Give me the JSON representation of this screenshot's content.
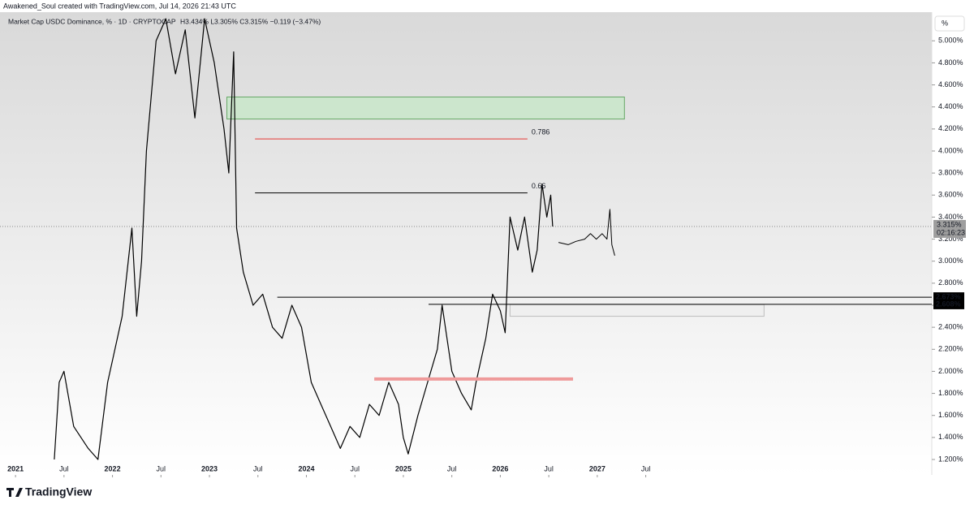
{
  "credit": "Awakened_Soul created with TradingView.com, Jul 14, 2026 21:43 UTC",
  "brand": "TradingView",
  "chart_data": {
    "type": "line",
    "title": "Market Cap USDC Dominance, % · 1D · CRYPTOCAP",
    "subtitle": "H3.434% L3.305% C3.315% −0.119 (−3.47%)",
    "scale_button": "%",
    "xlim": [
      2020.84,
      2030.45
    ],
    "ylim": [
      1.06,
      5.26
    ],
    "xticks": [
      {
        "value": 2021,
        "label": "2021"
      },
      {
        "value": 2021.5,
        "label": "Jul"
      },
      {
        "value": 2022,
        "label": "2022"
      },
      {
        "value": 2022.5,
        "label": "Jul"
      },
      {
        "value": 2023,
        "label": "2023"
      },
      {
        "value": 2023.5,
        "label": "Jul"
      },
      {
        "value": 2024,
        "label": "2024"
      },
      {
        "value": 2024.5,
        "label": "Jul"
      },
      {
        "value": 2025,
        "label": "2025"
      },
      {
        "value": 2025.5,
        "label": "Jul"
      },
      {
        "value": 2026,
        "label": "2026"
      },
      {
        "value": 2026.5,
        "label": "Jul"
      },
      {
        "value": 2027,
        "label": "2027"
      },
      {
        "value": 2027.5,
        "label": "Jul"
      }
    ],
    "yticks": [
      {
        "value": 1.2,
        "label": "1.200%"
      },
      {
        "value": 1.4,
        "label": "1.400%"
      },
      {
        "value": 1.6,
        "label": "1.600%"
      },
      {
        "value": 1.8,
        "label": "1.800%"
      },
      {
        "value": 2.0,
        "label": "2.000%"
      },
      {
        "value": 2.2,
        "label": "2.200%"
      },
      {
        "value": 2.4,
        "label": "2.400%"
      },
      {
        "value": 2.6,
        "label": "2.600%"
      },
      {
        "value": 2.8,
        "label": "2.800%"
      },
      {
        "value": 3.0,
        "label": "3.000%"
      },
      {
        "value": 3.2,
        "label": "3.200%"
      },
      {
        "value": 3.4,
        "label": "3.400%"
      },
      {
        "value": 3.6,
        "label": "3.600%"
      },
      {
        "value": 3.8,
        "label": "3.800%"
      },
      {
        "value": 4.0,
        "label": "4.000%"
      },
      {
        "value": 4.2,
        "label": "4.200%"
      },
      {
        "value": 4.4,
        "label": "4.400%"
      },
      {
        "value": 4.6,
        "label": "4.600%"
      },
      {
        "value": 4.8,
        "label": "4.800%"
      },
      {
        "value": 5.0,
        "label": "5.000%"
      }
    ],
    "series": [
      {
        "color": "#000000",
        "width": 1.2,
        "x": [
          2021.4,
          2021.45,
          2021.5,
          2021.6,
          2021.75,
          2021.85,
          2021.95,
          2022.0,
          2022.1,
          2022.2,
          2022.25,
          2022.3,
          2022.35,
          2022.45,
          2022.55,
          2022.65,
          2022.75,
          2022.85,
          2022.95,
          2023.05,
          2023.15,
          2023.2,
          2023.25,
          2023.28,
          2023.35,
          2023.45,
          2023.55,
          2023.65,
          2023.75,
          2023.85,
          2023.95,
          2024.05,
          2024.15,
          2024.25,
          2024.35,
          2024.45,
          2024.55,
          2024.65,
          2024.75,
          2024.85,
          2024.95,
          2025.0,
          2025.05,
          2025.15,
          2025.25,
          2025.35,
          2025.4,
          2025.5,
          2025.6,
          2025.7,
          2025.75,
          2025.85,
          2025.92,
          2026.0,
          2026.05,
          2026.1,
          2026.18,
          2026.25,
          2026.33,
          2026.38,
          2026.43,
          2026.48,
          2026.52,
          2026.54
        ],
        "values": [
          1.2,
          1.9,
          2.0,
          1.5,
          1.3,
          1.2,
          1.9,
          2.1,
          2.5,
          3.3,
          2.5,
          3.0,
          4.0,
          5.0,
          5.2,
          4.7,
          5.1,
          4.3,
          5.2,
          4.8,
          4.2,
          3.8,
          4.9,
          3.3,
          2.9,
          2.6,
          2.7,
          2.4,
          2.3,
          2.6,
          2.4,
          1.9,
          1.7,
          1.5,
          1.3,
          1.5,
          1.4,
          1.7,
          1.6,
          1.9,
          1.7,
          1.4,
          1.25,
          1.6,
          1.9,
          2.2,
          2.6,
          2.0,
          1.8,
          1.65,
          1.9,
          2.3,
          2.7,
          2.55,
          2.35,
          3.4,
          3.1,
          3.4,
          2.9,
          3.1,
          3.7,
          3.4,
          3.6,
          3.315
        ]
      },
      {
        "color": "#000000",
        "width": 1,
        "x": [
          2026.6,
          2026.7,
          2026.78,
          2026.87,
          2026.93,
          2026.99,
          2027.05,
          2027.1,
          2027.13,
          2027.15,
          2027.18
        ],
        "values": [
          3.17,
          3.15,
          3.18,
          3.2,
          3.25,
          3.2,
          3.25,
          3.2,
          3.47,
          3.15,
          3.05
        ]
      }
    ],
    "boxes": [
      {
        "color": "#c8e6c9",
        "stroke": "#66a866",
        "x": [
          2023.18,
          2027.28
        ],
        "values": [
          4.29,
          4.49
        ]
      },
      {
        "color": "#eeeeee",
        "stroke": "#bdbdbd",
        "x": [
          2026.1,
          2028.72
        ],
        "values": [
          2.5,
          2.606
        ]
      }
    ],
    "levels": [
      {
        "color": "#e53935",
        "width": 1,
        "x": [
          2023.47,
          2026.28
        ],
        "value": 4.11,
        "label": "0.786"
      },
      {
        "color": "#000000",
        "width": 1,
        "x": [
          2023.47,
          2026.28
        ],
        "value": 3.62,
        "label": "0.66"
      },
      {
        "color": "#000000",
        "width": 1,
        "x": [
          2023.7,
          2030.45
        ],
        "value": 2.673,
        "axis_label": "2.673%"
      },
      {
        "color": "#000000",
        "width": 1,
        "x": [
          2025.26,
          2030.45
        ],
        "value": 2.608,
        "axis_label": "2.608%"
      },
      {
        "color": "#ef9a9a",
        "width": 4,
        "x": [
          2024.7,
          2026.75
        ],
        "value": 1.93
      }
    ],
    "last_price": {
      "value": 3.315,
      "label": "3.315%",
      "countdown": "02:16:23"
    }
  }
}
